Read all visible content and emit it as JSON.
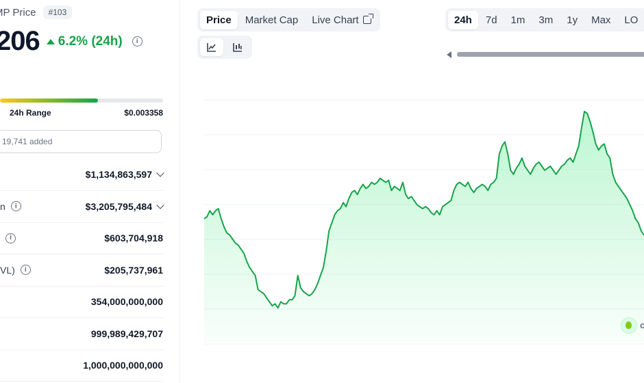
{
  "header": {
    "title": "MP Price",
    "rank": "#103"
  },
  "price": {
    "value": "206",
    "change": "6.2% (24h)"
  },
  "range": {
    "label": "24h Range",
    "high": "$0.003358",
    "progress": 0.6
  },
  "watchlist": {
    "text": "19,741 added"
  },
  "stats": [
    {
      "label": "",
      "value": "$1,134,863,597",
      "info": false,
      "chevron": true
    },
    {
      "label": "n",
      "value": "$3,205,795,484",
      "info": true,
      "chevron": true
    },
    {
      "label": "",
      "value": "$603,704,918",
      "info": true,
      "chevron": false
    },
    {
      "label": "VL)",
      "value": "$205,737,961",
      "info": true,
      "chevron": false
    },
    {
      "label": "",
      "value": "354,000,000,000",
      "info": false,
      "chevron": false
    },
    {
      "label": "",
      "value": "999,989,429,707",
      "info": false,
      "chevron": false
    },
    {
      "label": "",
      "value": "1,000,000,000,000",
      "info": false,
      "chevron": false
    }
  ],
  "tabs": [
    {
      "label": "Price",
      "active": true
    },
    {
      "label": "Market Cap",
      "active": false
    },
    {
      "label": "Live Chart",
      "active": false,
      "external": true
    }
  ],
  "chart_types": [
    {
      "icon": "line-chart-icon",
      "active": true
    },
    {
      "icon": "candlestick-chart-icon",
      "active": false
    }
  ],
  "ranges": [
    {
      "label": "24h",
      "active": true
    },
    {
      "label": "7d",
      "active": false
    },
    {
      "label": "1m",
      "active": false
    },
    {
      "label": "3m",
      "active": false
    },
    {
      "label": "1y",
      "active": false
    },
    {
      "label": "Max",
      "active": false
    },
    {
      "label": "LO",
      "active": false
    }
  ],
  "watermark": {
    "text": "c"
  },
  "colors": {
    "up": "#16a34a",
    "fill": "#86efac"
  },
  "chart_data": {
    "type": "area",
    "title": "",
    "xlabel": "",
    "ylabel": "",
    "grid": true,
    "ylim": [
      0,
      100
    ],
    "values": [
      48,
      49,
      52,
      50,
      52,
      53,
      48,
      44,
      41,
      40,
      38,
      36,
      35,
      33,
      31,
      27,
      24,
      22,
      20,
      13,
      12,
      11,
      9,
      7,
      5,
      6,
      4,
      7,
      6,
      6,
      8,
      8,
      10,
      20,
      14,
      12,
      11,
      10,
      11,
      13,
      16,
      20,
      24,
      32,
      42,
      46,
      50,
      52,
      53,
      56,
      54,
      58,
      61,
      62,
      60,
      63,
      65,
      63,
      64,
      66,
      65,
      66,
      68,
      67,
      66,
      67,
      62,
      64,
      63,
      62,
      66,
      60,
      58,
      59,
      57,
      55,
      54,
      53,
      54,
      53,
      51,
      50,
      52,
      50,
      54,
      55,
      56,
      57,
      62,
      65,
      66,
      65,
      64,
      66,
      63,
      61,
      63,
      64,
      65,
      64,
      62,
      65,
      66,
      68,
      80,
      84,
      86,
      80,
      72,
      70,
      73,
      75,
      78,
      74,
      72,
      70,
      73,
      75,
      76,
      74,
      72,
      73,
      74,
      72,
      70,
      72,
      74,
      75,
      77,
      78,
      76,
      80,
      84,
      93,
      101,
      100,
      96,
      91,
      85,
      82,
      84,
      85,
      80,
      78,
      70,
      66,
      64,
      62,
      60,
      58,
      55,
      52,
      48,
      46,
      42,
      40
    ]
  }
}
